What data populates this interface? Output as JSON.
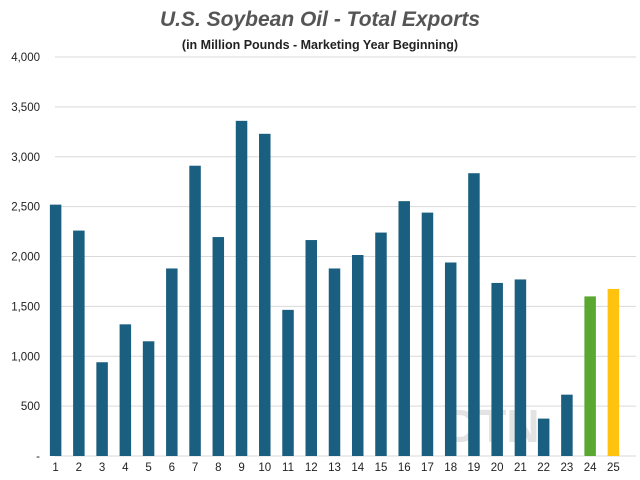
{
  "chart_data": {
    "type": "bar",
    "title": "U.S. Soybean Oil - Total Exports",
    "subtitle": "(in Million Pounds - Marketing Year Beginning)",
    "categories": [
      "1",
      "2",
      "3",
      "4",
      "5",
      "6",
      "7",
      "8",
      "9",
      "10",
      "11",
      "12",
      "13",
      "14",
      "15",
      "16",
      "17",
      "18",
      "19",
      "20",
      "21",
      "22",
      "23",
      "24",
      "25"
    ],
    "values": [
      2520,
      2260,
      940,
      1320,
      1150,
      1880,
      2910,
      2195,
      3360,
      3230,
      1465,
      2165,
      1880,
      2015,
      2240,
      2555,
      2440,
      1940,
      2835,
      1735,
      1770,
      375,
      615,
      1600,
      1675
    ],
    "bar_colors": [
      "#1b5f80",
      "#1b5f80",
      "#1b5f80",
      "#1b5f80",
      "#1b5f80",
      "#1b5f80",
      "#1b5f80",
      "#1b5f80",
      "#1b5f80",
      "#1b5f80",
      "#1b5f80",
      "#1b5f80",
      "#1b5f80",
      "#1b5f80",
      "#1b5f80",
      "#1b5f80",
      "#1b5f80",
      "#1b5f80",
      "#1b5f80",
      "#1b5f80",
      "#1b5f80",
      "#1b5f80",
      "#1b5f80",
      "#5aa832",
      "#ffc20e"
    ],
    "ylim": [
      0,
      4000
    ],
    "yticks": [
      0,
      500,
      1000,
      1500,
      2000,
      2500,
      3000,
      3500,
      4000
    ],
    "ytick_labels": [
      "-",
      "500",
      "1,000",
      "1,500",
      "2,000",
      "2,500",
      "3,000",
      "3,500",
      "4,000"
    ],
    "xlabel": "",
    "ylabel": "",
    "grid": true,
    "watermark": "DTN"
  }
}
